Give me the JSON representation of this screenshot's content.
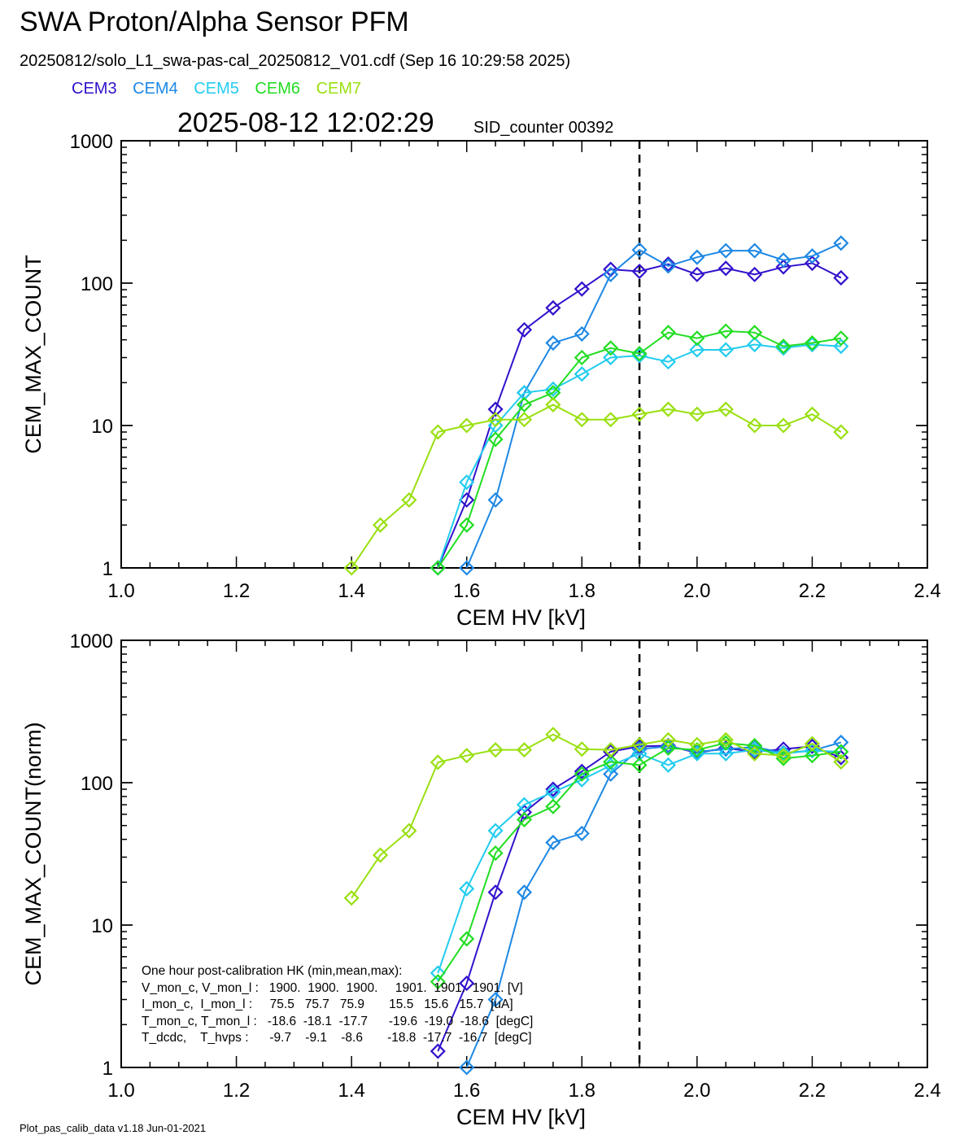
{
  "header": {
    "title": "SWA Proton/Alpha Sensor PFM",
    "subtitle": "20250812/solo_L1_swa-pas-cal_20250812_V01.cdf  (Sep 16 10:29:58 2025)",
    "timestamp": "2025-08-12 12:02:29",
    "sid_counter": "SID_counter 00392"
  },
  "footer": "Plot_pas_calib_data v1.18 Jun-01-2021",
  "legend": [
    {
      "label": "CEM3",
      "color": "#3311cc"
    },
    {
      "label": "CEM4",
      "color": "#1e88e5"
    },
    {
      "label": "CEM5",
      "color": "#22ccee"
    },
    {
      "label": "CEM6",
      "color": "#22dd22"
    },
    {
      "label": "CEM7",
      "color": "#99e010"
    }
  ],
  "hk_table": [
    "One hour post-calibration HK (min,mean,max):",
    "V_mon_c, V_mon_l :   1900.  1900.  1900.     1901.  1901.  1901. [V]",
    "I_mon_c,  I_mon_l :     75.5   75.7   75.9       15.5   15.6   15.7  [uA]",
    "T_mon_c, T_mon_l :   -18.6  -18.1  -17.7      -19.6  -19.0  -18.6  [degC]",
    "T_dcdc,    T_hvps :      -9.7    -9.1    -8.6       -18.8  -17.7  -16.7  [degC]"
  ],
  "chart_data": [
    {
      "type": "line",
      "xlabel": "CEM HV [kV]",
      "ylabel": "CEM_MAX_COUNT",
      "xlim": [
        1.0,
        2.4
      ],
      "ylim": [
        1,
        1000
      ],
      "yscale": "log",
      "xticks": [
        "1.0",
        "1.2",
        "1.4",
        "1.6",
        "1.8",
        "2.0",
        "2.2",
        "2.4"
      ],
      "yticks": [
        "1",
        "10",
        "100",
        "1000"
      ],
      "vline": 1.9,
      "marker": "diamond",
      "series": [
        {
          "name": "CEM3",
          "color": "#3311cc",
          "x": [
            1.55,
            1.6,
            1.65,
            1.7,
            1.75,
            1.8,
            1.85,
            1.9,
            1.95,
            2.0,
            2.05,
            2.1,
            2.15,
            2.2,
            2.25
          ],
          "y": [
            1,
            3,
            13,
            47,
            67,
            91,
            125,
            121,
            136,
            115,
            127,
            115,
            130,
            138,
            109
          ]
        },
        {
          "name": "CEM4",
          "color": "#1e88e5",
          "x": [
            1.6,
            1.65,
            1.7,
            1.75,
            1.8,
            1.85,
            1.9,
            1.95,
            2.0,
            2.05,
            2.1,
            2.15,
            2.2,
            2.25
          ],
          "y": [
            1,
            3,
            17,
            38,
            44,
            115,
            171,
            132,
            152,
            169,
            169,
            145,
            155,
            191
          ]
        },
        {
          "name": "CEM5",
          "color": "#22ccee",
          "x": [
            1.55,
            1.6,
            1.65,
            1.7,
            1.75,
            1.8,
            1.85,
            1.9,
            1.95,
            2.0,
            2.05,
            2.1,
            2.15,
            2.2,
            2.25
          ],
          "y": [
            1,
            4,
            10,
            17,
            18,
            23,
            30,
            31,
            28,
            34,
            34,
            37,
            35,
            37,
            36
          ]
        },
        {
          "name": "CEM6",
          "color": "#22dd22",
          "x": [
            1.55,
            1.6,
            1.65,
            1.7,
            1.75,
            1.8,
            1.85,
            1.9,
            1.95,
            2.0,
            2.05,
            2.1,
            2.15,
            2.2,
            2.25
          ],
          "y": [
            1,
            2,
            8,
            14,
            17,
            30,
            35,
            32,
            45,
            41,
            46,
            45,
            36,
            38,
            41
          ]
        },
        {
          "name": "CEM7",
          "color": "#99e010",
          "x": [
            1.4,
            1.45,
            1.5,
            1.55,
            1.6,
            1.65,
            1.7,
            1.75,
            1.8,
            1.85,
            1.9,
            1.95,
            2.0,
            2.05,
            2.1,
            2.15,
            2.2,
            2.25
          ],
          "y": [
            1,
            2,
            3,
            9,
            10,
            11,
            11,
            14,
            11,
            11,
            12,
            13,
            12,
            13,
            10,
            10,
            12,
            9
          ]
        }
      ]
    },
    {
      "type": "line",
      "xlabel": "CEM HV [kV]",
      "ylabel": "CEM_MAX_COUNT(norm)",
      "xlim": [
        1.0,
        2.4
      ],
      "ylim": [
        1,
        1000
      ],
      "yscale": "log",
      "xticks": [
        "1.0",
        "1.2",
        "1.4",
        "1.6",
        "1.8",
        "2.0",
        "2.2",
        "2.4"
      ],
      "yticks": [
        "1",
        "10",
        "100",
        "1000"
      ],
      "vline": 1.9,
      "marker": "diamond",
      "series": [
        {
          "name": "CEM3",
          "color": "#3311cc",
          "x": [
            1.55,
            1.6,
            1.65,
            1.7,
            1.75,
            1.8,
            1.85,
            1.9,
            1.95,
            2.0,
            2.05,
            2.1,
            2.15,
            2.2,
            2.25
          ],
          "y": [
            1.3,
            3.9,
            17,
            62,
            90,
            120,
            165,
            180,
            182,
            162,
            175,
            165,
            172,
            180,
            150
          ]
        },
        {
          "name": "CEM4",
          "color": "#1e88e5",
          "x": [
            1.6,
            1.65,
            1.7,
            1.75,
            1.8,
            1.85,
            1.9,
            1.95,
            2.0,
            2.05,
            2.1,
            2.15,
            2.2,
            2.25
          ],
          "y": [
            1,
            3,
            17,
            38,
            44,
            115,
            172,
            180,
            165,
            172,
            178,
            162,
            168,
            192
          ]
        },
        {
          "name": "CEM5",
          "color": "#22ccee",
          "x": [
            1.55,
            1.6,
            1.65,
            1.7,
            1.75,
            1.8,
            1.85,
            1.9,
            1.95,
            2.0,
            2.05,
            2.1,
            2.15,
            2.2,
            2.25
          ],
          "y": [
            4.6,
            18,
            46,
            70,
            86,
            105,
            132,
            160,
            133,
            160,
            160,
            170,
            160,
            168,
            165
          ]
        },
        {
          "name": "CEM6",
          "color": "#22dd22",
          "x": [
            1.55,
            1.6,
            1.65,
            1.7,
            1.75,
            1.8,
            1.85,
            1.9,
            1.95,
            2.0,
            2.05,
            2.1,
            2.15,
            2.2,
            2.25
          ],
          "y": [
            4,
            8,
            32,
            55,
            68,
            115,
            140,
            133,
            175,
            170,
            190,
            182,
            148,
            155,
            165
          ]
        },
        {
          "name": "CEM7",
          "color": "#99e010",
          "x": [
            1.4,
            1.45,
            1.5,
            1.55,
            1.6,
            1.65,
            1.7,
            1.75,
            1.8,
            1.85,
            1.9,
            1.95,
            2.0,
            2.05,
            2.1,
            2.15,
            2.2,
            2.25
          ],
          "y": [
            15.5,
            31,
            46,
            139,
            155,
            170,
            170,
            218,
            172,
            170,
            185,
            200,
            185,
            200,
            160,
            155,
            188,
            140
          ]
        }
      ]
    }
  ]
}
